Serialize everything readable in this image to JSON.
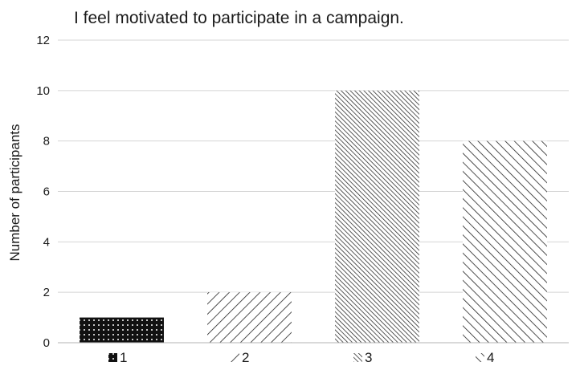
{
  "chart_data": {
    "type": "bar",
    "title": "I feel motivated to participate in a campaign.",
    "xlabel": "",
    "ylabel": "Number of participants",
    "categories": [
      "1",
      "2",
      "3",
      "4"
    ],
    "values": [
      1,
      2,
      10,
      8
    ],
    "ylim": [
      0,
      12
    ],
    "yticks": [
      "0",
      "2",
      "4",
      "6",
      "8",
      "10",
      "12"
    ],
    "grid": "horizontal",
    "legend": {
      "placement": "bottom",
      "entries": [
        "1",
        "2",
        "3",
        "4"
      ]
    },
    "colors": {
      "bar_ink": "#1a1a1a",
      "grid": "#d4d4d4",
      "axis": "#b3b3b3"
    }
  }
}
